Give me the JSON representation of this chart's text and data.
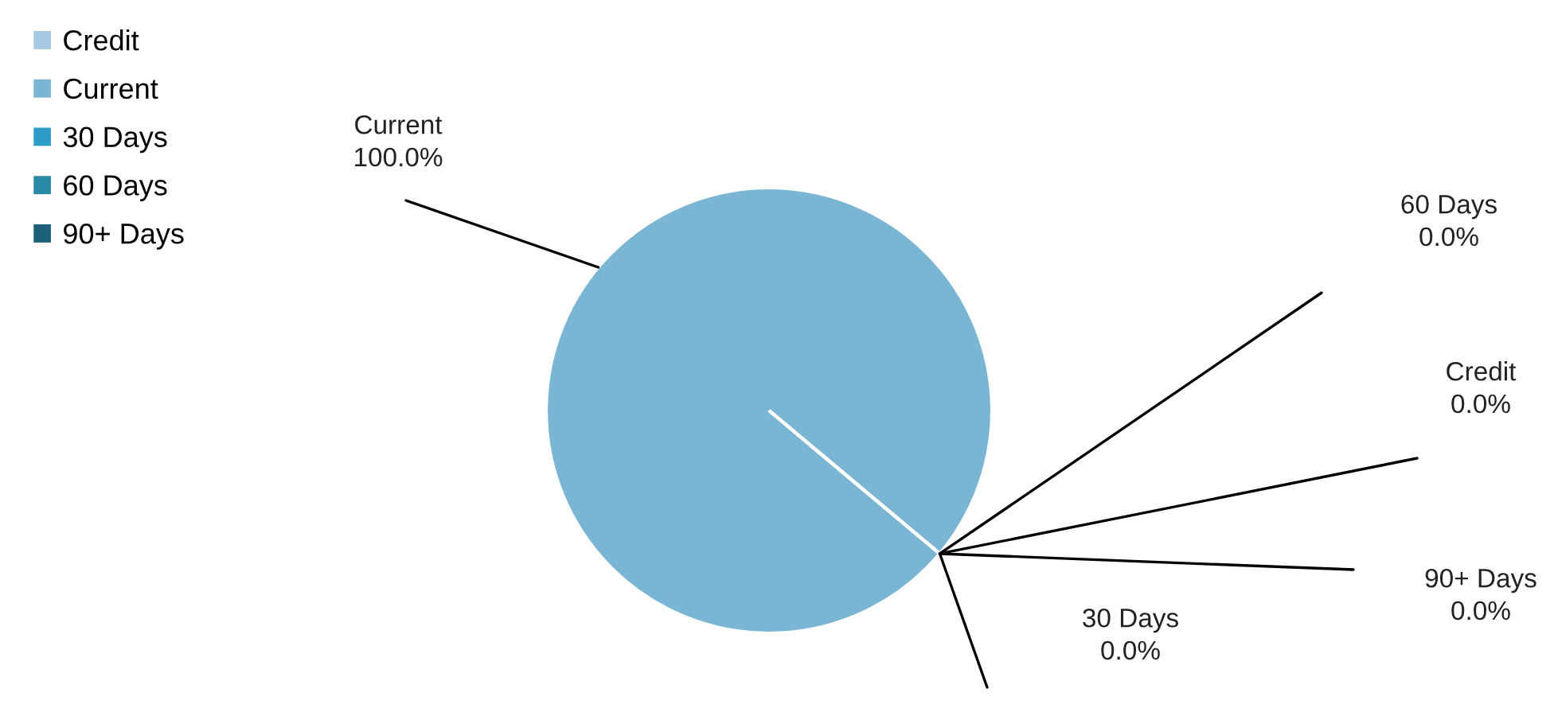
{
  "chart_data": {
    "type": "pie",
    "categories": [
      "Credit",
      "Current",
      "30 Days",
      "60 Days",
      "90+ Days"
    ],
    "values": [
      0,
      100,
      0,
      0,
      0
    ],
    "colors": [
      "#a6c8e0",
      "#7ab6d4",
      "#2e9cc8",
      "#2a8aa6",
      "#1d5f78"
    ],
    "value_labels": [
      "0.0%",
      "100.0%",
      "0.0%",
      "0.0%",
      "0.0%"
    ],
    "legend": "top left"
  }
}
